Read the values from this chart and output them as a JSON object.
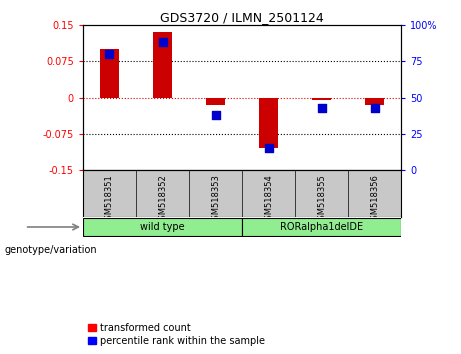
{
  "title": "GDS3720 / ILMN_2501124",
  "samples": [
    "GSM518351",
    "GSM518352",
    "GSM518353",
    "GSM518354",
    "GSM518355",
    "GSM518356"
  ],
  "red_values": [
    0.1,
    0.135,
    -0.015,
    -0.105,
    -0.005,
    -0.015
  ],
  "blue_values_pct": [
    80,
    88,
    38,
    15,
    43,
    43
  ],
  "ylim_left": [
    -0.15,
    0.15
  ],
  "ylim_right": [
    0,
    100
  ],
  "yticks_left": [
    -0.15,
    -0.075,
    0,
    0.075,
    0.15
  ],
  "yticks_right": [
    0,
    25,
    50,
    75,
    100
  ],
  "ytick_labels_left": [
    "-0.15",
    "-0.075",
    "0",
    "0.075",
    "0.15"
  ],
  "ytick_labels_right": [
    "0",
    "25",
    "50",
    "75",
    "100%"
  ],
  "dotted_lines": [
    -0.075,
    0.075
  ],
  "group_labels": [
    "wild type",
    "RORalpha1delDE"
  ],
  "group_ranges": [
    [
      0,
      2
    ],
    [
      3,
      5
    ]
  ],
  "group_colors": [
    "#90EE90",
    "#90EE90"
  ],
  "genotype_label": "genotype/variation",
  "legend_red": "transformed count",
  "legend_blue": "percentile rank within the sample",
  "bar_color": "#CC0000",
  "dot_color": "#0000CC",
  "bar_width": 0.35,
  "dot_size": 30,
  "background_color": "#ffffff",
  "zero_line_color": "#CC0000",
  "sample_box_color": "#c8c8c8"
}
